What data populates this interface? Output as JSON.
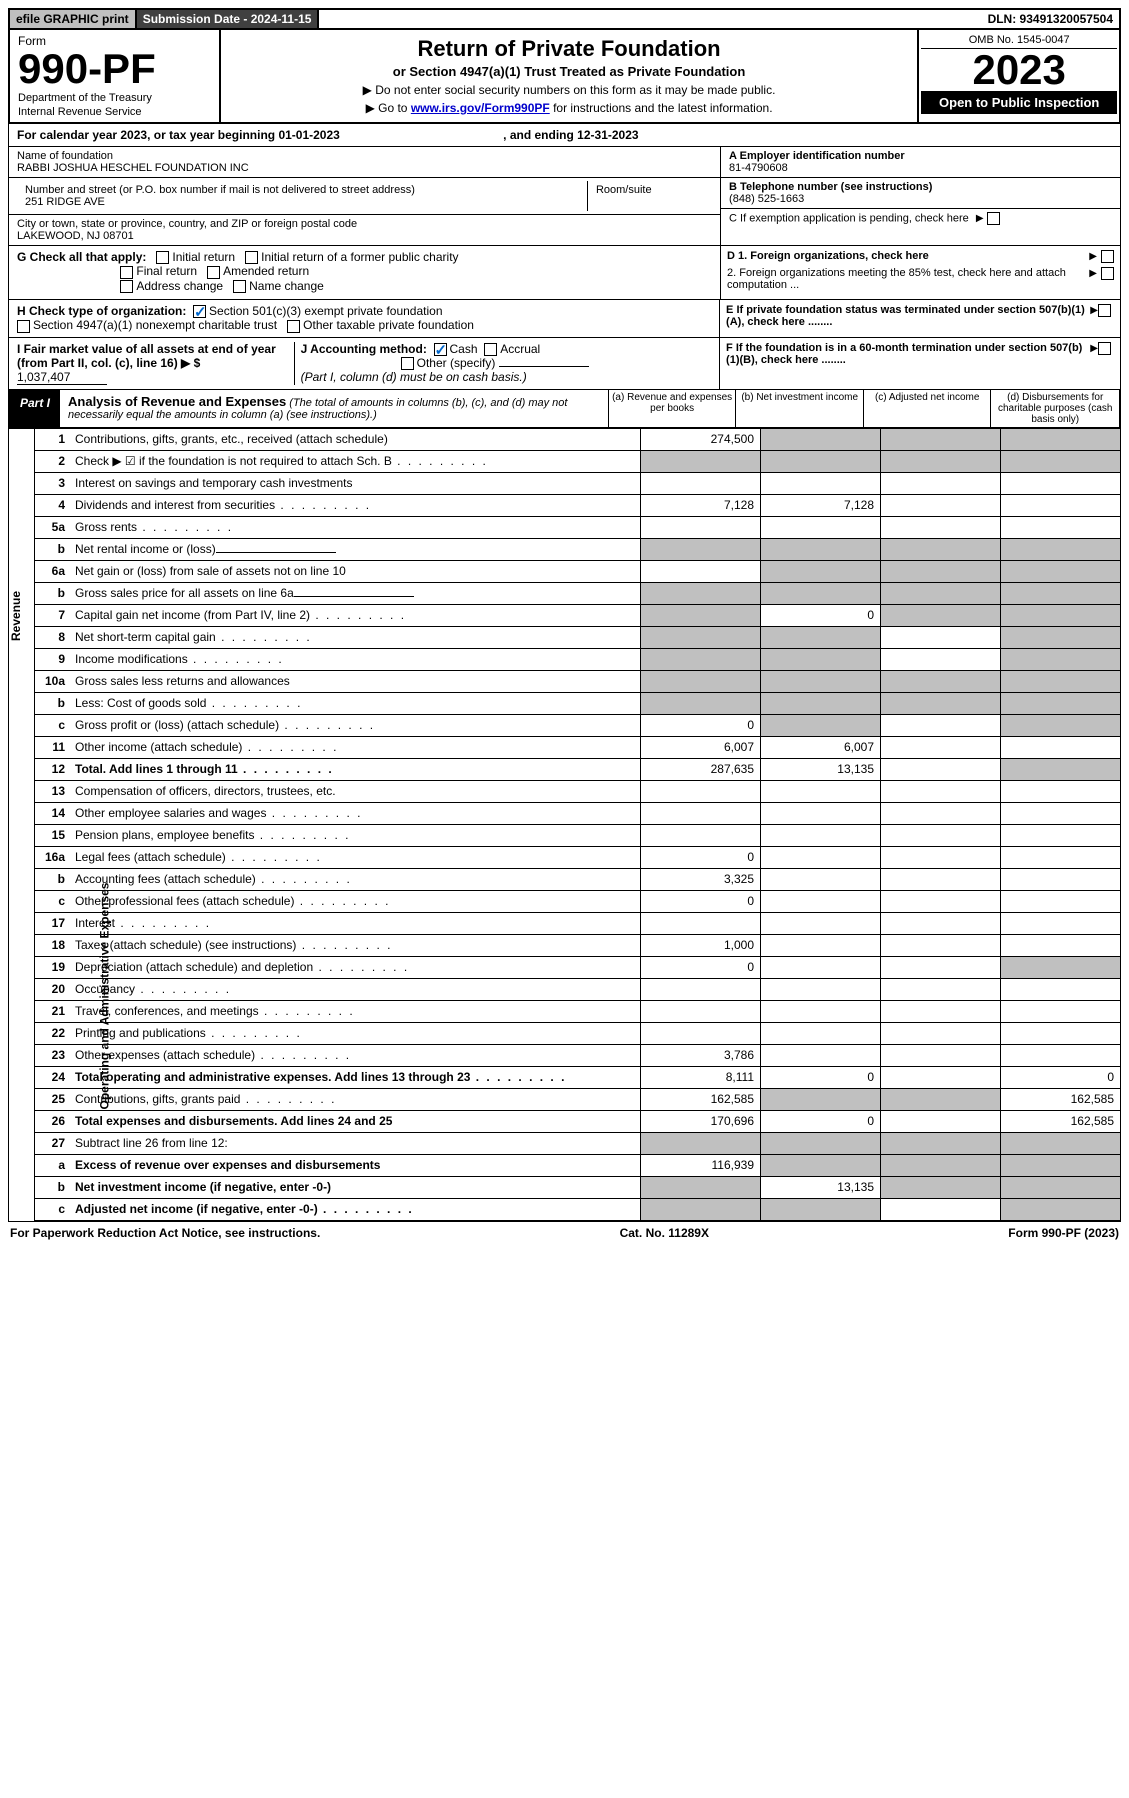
{
  "top": {
    "efile": "efile GRAPHIC print",
    "sub_date_label": "Submission Date - 2024-11-15",
    "dln": "DLN: 93491320057504"
  },
  "header": {
    "form_label": "Form",
    "form_num": "990-PF",
    "dept": "Department of the Treasury",
    "irs": "Internal Revenue Service",
    "title": "Return of Private Foundation",
    "subtitle": "or Section 4947(a)(1) Trust Treated as Private Foundation",
    "inst1": "▶ Do not enter social security numbers on this form as it may be made public.",
    "inst2_pre": "▶ Go to ",
    "inst2_link": "www.irs.gov/Form990PF",
    "inst2_post": " for instructions and the latest information.",
    "omb": "OMB No. 1545-0047",
    "year": "2023",
    "open_pub": "Open to Public Inspection"
  },
  "cal": {
    "text": "For calendar year 2023, or tax year beginning 01-01-2023",
    "end": ", and ending 12-31-2023"
  },
  "info": {
    "name_label": "Name of foundation",
    "name": "RABBI JOSHUA HESCHEL FOUNDATION INC",
    "addr_label": "Number and street (or P.O. box number if mail is not delivered to street address)",
    "addr": "251 RIDGE AVE",
    "room_label": "Room/suite",
    "city_label": "City or town, state or province, country, and ZIP or foreign postal code",
    "city": "LAKEWOOD, NJ  08701",
    "a_label": "A Employer identification number",
    "a_val": "81-4790608",
    "b_label": "B Telephone number (see instructions)",
    "b_val": "(848) 525-1663",
    "c_label": "C If exemption application is pending, check here"
  },
  "g": {
    "label": "G Check all that apply:",
    "o1": "Initial return",
    "o2": "Initial return of a former public charity",
    "o3": "Final return",
    "o4": "Amended return",
    "o5": "Address change",
    "o6": "Name change"
  },
  "d": {
    "d1": "D 1. Foreign organizations, check here",
    "d2": "2. Foreign organizations meeting the 85% test, check here and attach computation ..."
  },
  "h": {
    "label": "H Check type of organization:",
    "o1": "Section 501(c)(3) exempt private foundation",
    "o2": "Section 4947(a)(1) nonexempt charitable trust",
    "o3": "Other taxable private foundation"
  },
  "e": {
    "txt": "E  If private foundation status was terminated under section 507(b)(1)(A), check here ........"
  },
  "i": {
    "label": "I Fair market value of all assets at end of year (from Part II, col. (c), line 16) ▶ $",
    "val": "1,037,407"
  },
  "j": {
    "label": "J Accounting method:",
    "o1": "Cash",
    "o2": "Accrual",
    "o3": "Other (specify)",
    "note": "(Part I, column (d) must be on cash basis.)"
  },
  "f": {
    "txt": "F  If the foundation is in a 60-month termination under section 507(b)(1)(B), check here ........"
  },
  "part1": {
    "tag": "Part I",
    "title": "Analysis of Revenue and Expenses",
    "sub": "(The total of amounts in columns (b), (c), and (d) may not necessarily equal the amounts in column (a) (see instructions).)",
    "ca": "(a)   Revenue and expenses per books",
    "cb": "(b)   Net investment income",
    "cc": "(c)  Adjusted net income",
    "cd": "(d)  Disbursements for charitable purposes (cash basis only)"
  },
  "side": {
    "rev": "Revenue",
    "oae": "Operating and Administrative Expenses"
  },
  "rows": [
    {
      "n": "1",
      "d": "Contributions, gifts, grants, etc., received (attach schedule)",
      "a": "274,500",
      "ga": false,
      "gb": true,
      "gc": true,
      "gd": true
    },
    {
      "n": "2",
      "d": "Check ▶ ☑ if the foundation is not required to attach Sch. B",
      "dots": true,
      "ga": true,
      "gb": true,
      "gc": true,
      "gd": true,
      "noc": true
    },
    {
      "n": "3",
      "d": "Interest on savings and temporary cash investments"
    },
    {
      "n": "4",
      "d": "Dividends and interest from securities",
      "dots": true,
      "a": "7,128",
      "b": "7,128"
    },
    {
      "n": "5a",
      "d": "Gross rents",
      "dots": true
    },
    {
      "n": "b",
      "d": "Net rental income or (loss)",
      "underline": true,
      "gb": true,
      "gc": true,
      "gd": true,
      "ga": true,
      "after_grey": true
    },
    {
      "n": "6a",
      "d": "Net gain or (loss) from sale of assets not on line 10",
      "gb": true,
      "gc": true,
      "gd": true
    },
    {
      "n": "b",
      "d": "Gross sales price for all assets on line 6a",
      "underline": true,
      "ga": true,
      "gb": true,
      "gc": true,
      "gd": true
    },
    {
      "n": "7",
      "d": "Capital gain net income (from Part IV, line 2)",
      "dots": true,
      "ga": true,
      "b": "0",
      "gc": true,
      "gd": true
    },
    {
      "n": "8",
      "d": "Net short-term capital gain",
      "dots": true,
      "ga": true,
      "gb": true,
      "gd": true
    },
    {
      "n": "9",
      "d": "Income modifications",
      "dots": true,
      "ga": true,
      "gb": true,
      "gd": true
    },
    {
      "n": "10a",
      "d": "Gross sales less returns and allowances",
      "box": true,
      "ga": true,
      "gb": true,
      "gc": true,
      "gd": true
    },
    {
      "n": "b",
      "d": "Less: Cost of goods sold",
      "dots": true,
      "box": true,
      "ga": true,
      "gb": true,
      "gc": true,
      "gd": true
    },
    {
      "n": "c",
      "d": "Gross profit or (loss) (attach schedule)",
      "dots": true,
      "a": "0",
      "gb": true,
      "gd": true
    },
    {
      "n": "11",
      "d": "Other income (attach schedule)",
      "dots": true,
      "a": "6,007",
      "b": "6,007"
    },
    {
      "n": "12",
      "d": "Total. Add lines 1 through 11",
      "dots": true,
      "bold": true,
      "a": "287,635",
      "b": "13,135",
      "gd": true
    },
    {
      "n": "13",
      "d": "Compensation of officers, directors, trustees, etc."
    },
    {
      "n": "14",
      "d": "Other employee salaries and wages",
      "dots": true
    },
    {
      "n": "15",
      "d": "Pension plans, employee benefits",
      "dots": true
    },
    {
      "n": "16a",
      "d": "Legal fees (attach schedule)",
      "dots": true,
      "a": "0"
    },
    {
      "n": "b",
      "d": "Accounting fees (attach schedule)",
      "dots": true,
      "a": "3,325"
    },
    {
      "n": "c",
      "d": "Other professional fees (attach schedule)",
      "dots": true,
      "a": "0"
    },
    {
      "n": "17",
      "d": "Interest",
      "dots": true
    },
    {
      "n": "18",
      "d": "Taxes (attach schedule) (see instructions)",
      "dots": true,
      "a": "1,000"
    },
    {
      "n": "19",
      "d": "Depreciation (attach schedule) and depletion",
      "dots": true,
      "a": "0",
      "gd": true
    },
    {
      "n": "20",
      "d": "Occupancy",
      "dots": true
    },
    {
      "n": "21",
      "d": "Travel, conferences, and meetings",
      "dots": true
    },
    {
      "n": "22",
      "d": "Printing and publications",
      "dots": true
    },
    {
      "n": "23",
      "d": "Other expenses (attach schedule)",
      "dots": true,
      "a": "3,786"
    },
    {
      "n": "24",
      "d": "Total operating and administrative expenses. Add lines 13 through 23",
      "dots": true,
      "bold": true,
      "a": "8,111",
      "b": "0",
      "d4": "0"
    },
    {
      "n": "25",
      "d": "Contributions, gifts, grants paid",
      "dots": true,
      "a": "162,585",
      "gb": true,
      "gc": true,
      "d4": "162,585"
    },
    {
      "n": "26",
      "d": "Total expenses and disbursements. Add lines 24 and 25",
      "bold": true,
      "a": "170,696",
      "b": "0",
      "d4": "162,585"
    },
    {
      "n": "27",
      "d": "Subtract line 26 from line 12:",
      "ga": true,
      "gb": true,
      "gc": true,
      "gd": true
    },
    {
      "n": "a",
      "d": "Excess of revenue over expenses and disbursements",
      "bold": true,
      "a": "116,939",
      "gb": true,
      "gc": true,
      "gd": true
    },
    {
      "n": "b",
      "d": "Net investment income (if negative, enter -0-)",
      "bold": true,
      "ga": true,
      "b": "13,135",
      "gc": true,
      "gd": true
    },
    {
      "n": "c",
      "d": "Adjusted net income (if negative, enter -0-)",
      "dots": true,
      "bold": true,
      "ga": true,
      "gb": true,
      "gd": true
    }
  ],
  "footer": {
    "left": "For Paperwork Reduction Act Notice, see instructions.",
    "mid": "Cat. No. 11289X",
    "right": "Form 990-PF (2023)"
  },
  "colors": {
    "grey": "#c0c0c0",
    "link": "#0000cc",
    "check": "#0066cc"
  }
}
